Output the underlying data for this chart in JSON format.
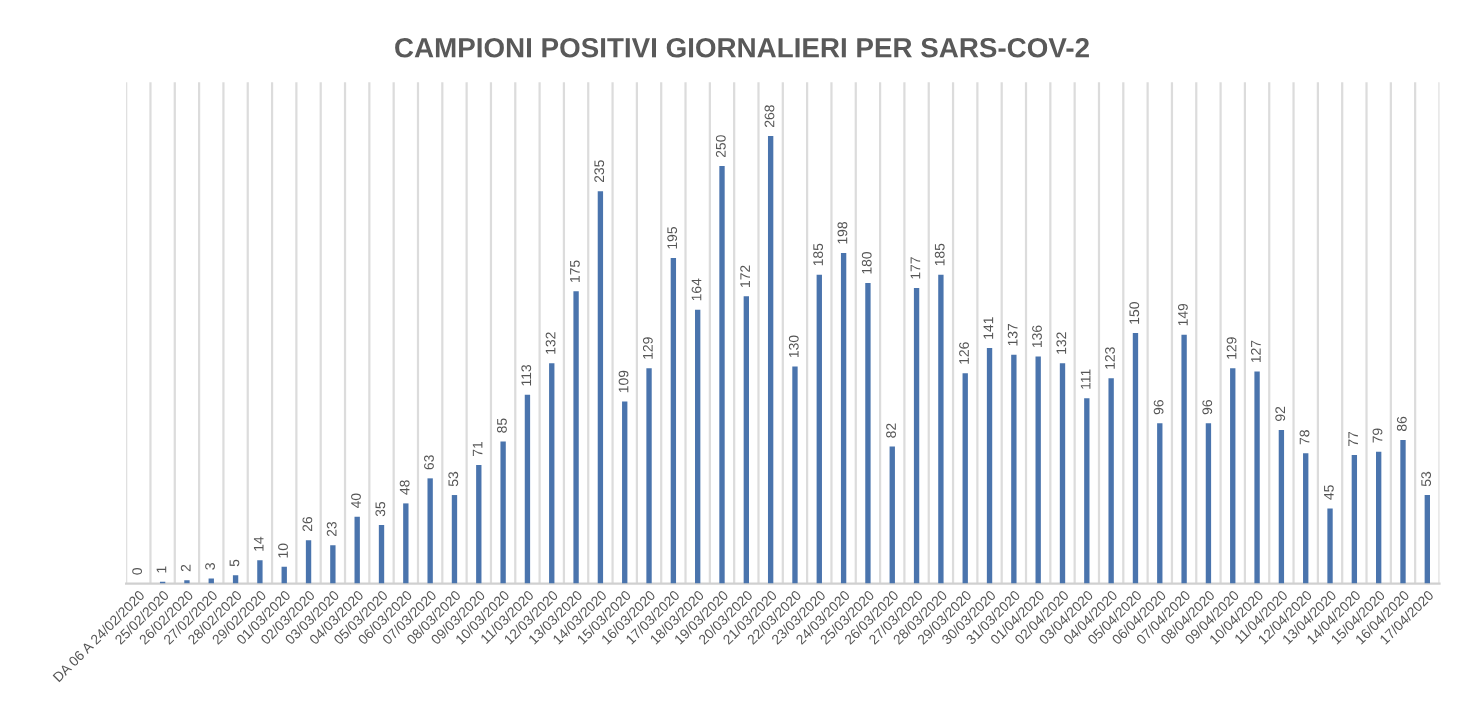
{
  "chart_data": {
    "type": "bar",
    "title": "CAMPIONI POSITIVI GIORNALIERI PER SARS-COV-2",
    "categories": [
      "DA 06 A 24/02/2020",
      "25/02/2020",
      "26/02/2020",
      "27/02/2020",
      "28/02/2020",
      "29/02/2020",
      "01/03/2020",
      "02/03/2020",
      "03/03/2020",
      "04/03/2020",
      "05/03/2020",
      "06/03/2020",
      "07/03/2020",
      "08/03/2020",
      "09/03/2020",
      "10/03/2020",
      "11/03/2020",
      "12/03/2020",
      "13/03/2020",
      "14/03/2020",
      "15/03/2020",
      "16/03/2020",
      "17/03/2020",
      "18/03/2020",
      "19/03/2020",
      "20/03/2020",
      "21/03/2020",
      "22/03/2020",
      "23/03/2020",
      "24/03/2020",
      "25/03/2020",
      "26/03/2020",
      "27/03/2020",
      "28/03/2020",
      "29/03/2020",
      "30/03/2020",
      "31/03/2020",
      "01/04/2020",
      "02/04/2020",
      "03/04/2020",
      "04/04/2020",
      "05/04/2020",
      "06/04/2020",
      "07/04/2020",
      "08/04/2020",
      "09/04/2020",
      "10/04/2020",
      "11/04/2020",
      "12/04/2020",
      "13/04/2020",
      "14/04/2020",
      "15/04/2020",
      "16/04/2020",
      "17/04/2020"
    ],
    "values": [
      0,
      1,
      2,
      3,
      5,
      14,
      10,
      26,
      23,
      40,
      35,
      48,
      63,
      53,
      71,
      85,
      113,
      132,
      175,
      235,
      109,
      129,
      195,
      164,
      250,
      172,
      268,
      130,
      185,
      198,
      180,
      82,
      177,
      185,
      126,
      141,
      137,
      136,
      132,
      111,
      123,
      150,
      96,
      149,
      96,
      129,
      127,
      92,
      78,
      45,
      77,
      79,
      86,
      53
    ],
    "color": "#4a74ad",
    "data_labels": true,
    "grid": "x"
  }
}
